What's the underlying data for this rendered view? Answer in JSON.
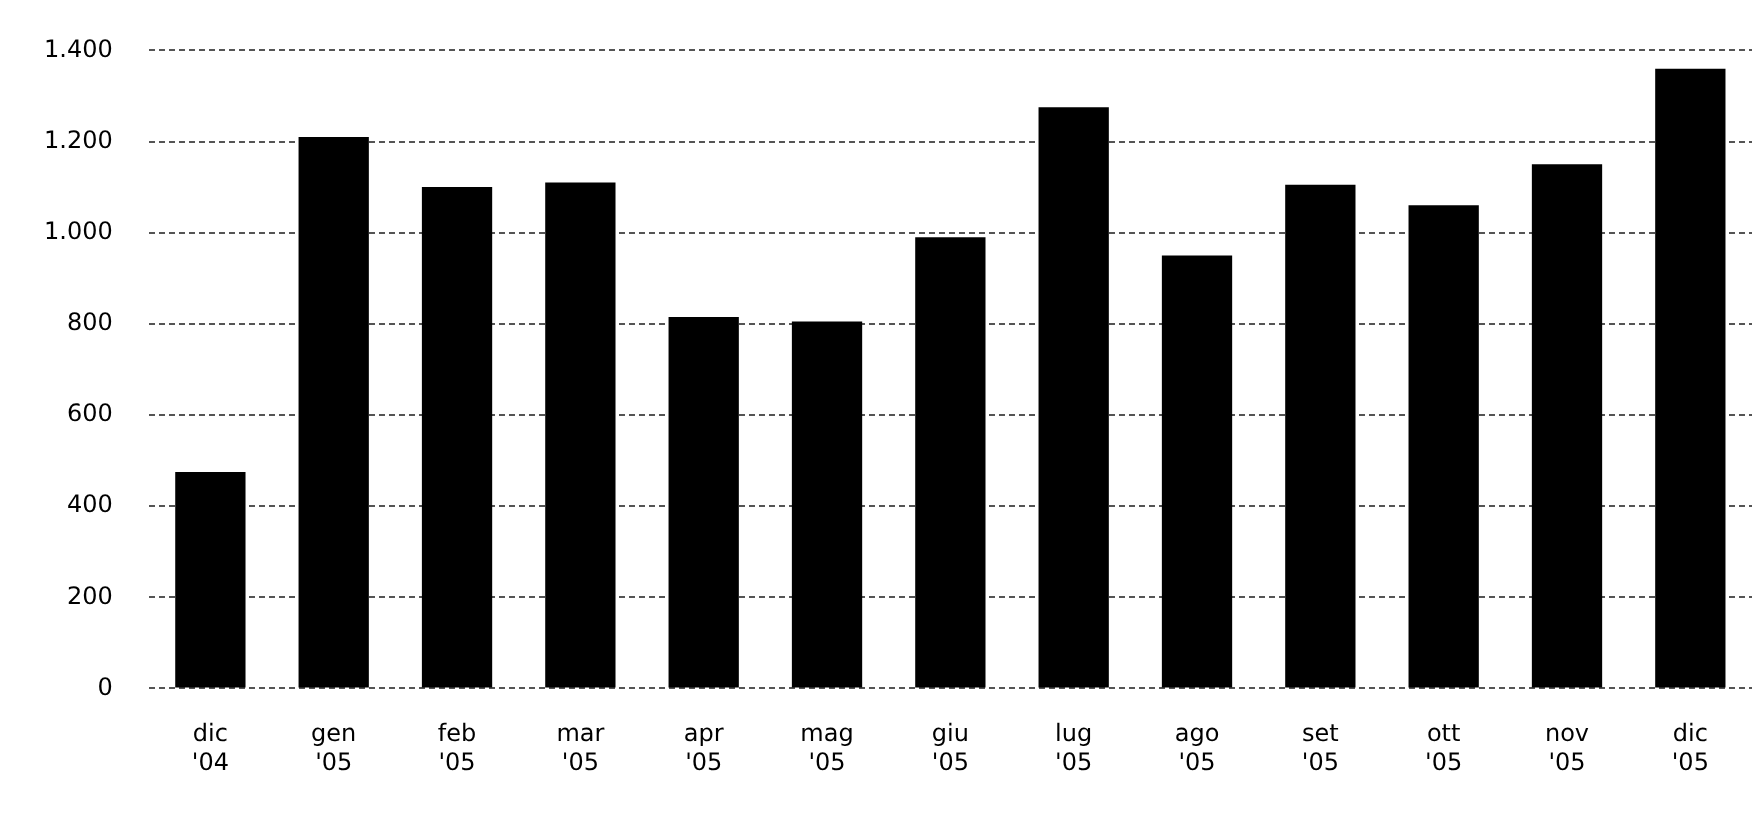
{
  "chart_data": {
    "type": "bar",
    "categories": [
      "dic '04",
      "gen '05",
      "feb '05",
      "mar '05",
      "apr '05",
      "mag '05",
      "giu '05",
      "lug '05",
      "ago '05",
      "set '05",
      "ott '05",
      "nov '05",
      "dic '05"
    ],
    "values": [
      475,
      1210,
      1100,
      1110,
      815,
      805,
      990,
      1275,
      950,
      1105,
      1060,
      1150,
      1360
    ],
    "color": "#000000",
    "ylim": [
      0,
      1400
    ],
    "yticks": [
      0,
      200,
      400,
      600,
      800,
      {
        "value": 1000,
        "label": "1.000"
      },
      {
        "value": 1200,
        "label": "1.200"
      },
      {
        "value": 1400,
        "label": "1.400"
      }
    ],
    "grid": "y",
    "legend": false
  }
}
